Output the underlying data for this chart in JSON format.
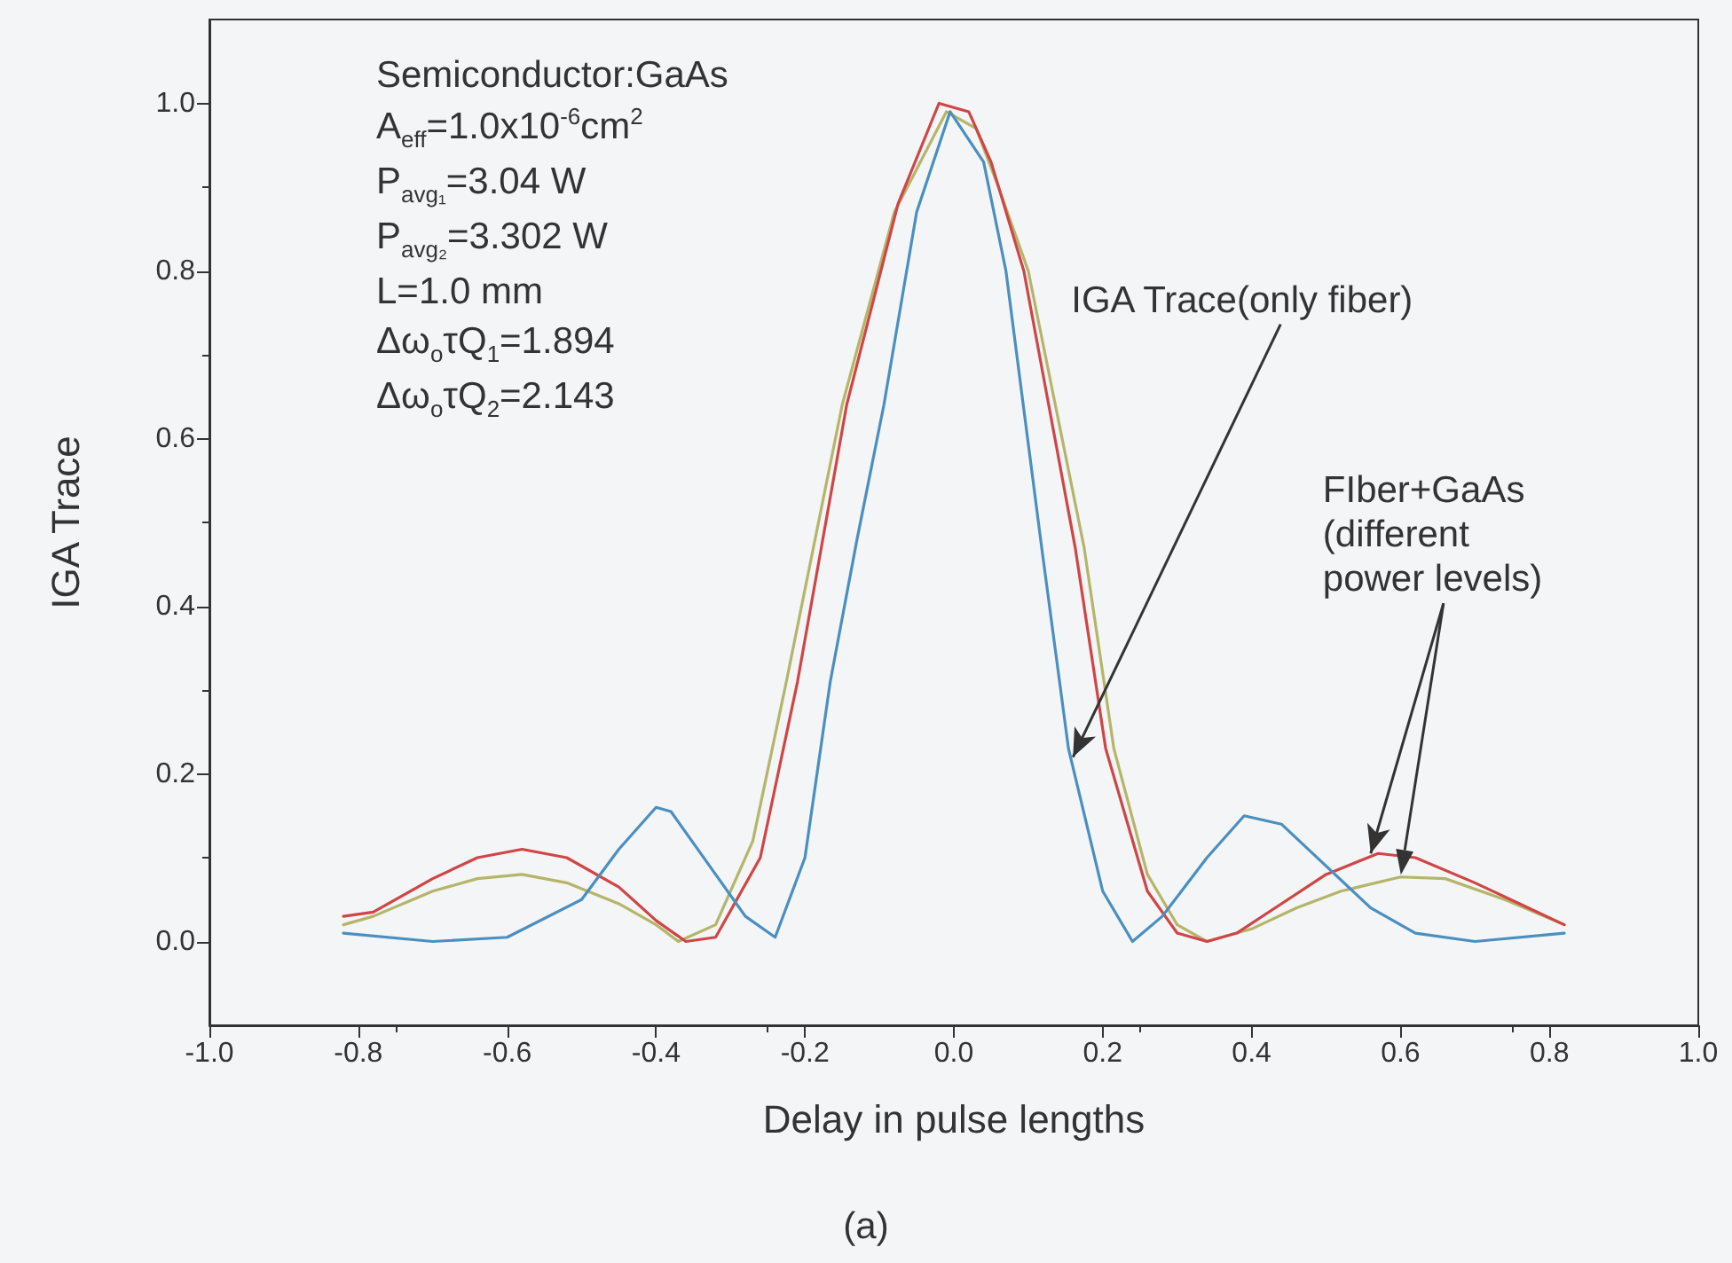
{
  "chart_data": {
    "type": "line",
    "title": "(a)",
    "xlabel": "Delay in pulse lengths",
    "ylabel": "IGA Trace",
    "xlim": [
      -1,
      1
    ],
    "ylim": [
      -0.1,
      1.1
    ],
    "xticks": [
      {
        "value": -1,
        "label": "-1.0"
      },
      {
        "value": -0.8,
        "label": "-0.8"
      },
      {
        "value": -0.6,
        "label": "-0.6"
      },
      {
        "value": -0.4,
        "label": "-0.4"
      },
      {
        "value": -0.2,
        "label": "-0.2"
      },
      {
        "value": 0,
        "label": "0.0"
      },
      {
        "value": 0.2,
        "label": "0.2"
      },
      {
        "value": 0.4,
        "label": "0.4"
      },
      {
        "value": 0.6,
        "label": "0.6"
      },
      {
        "value": 0.8,
        "label": "0.8"
      },
      {
        "value": 1,
        "label": "1.0"
      }
    ],
    "yticks": [
      {
        "value": 0,
        "label": "0.0"
      },
      {
        "value": 0.2,
        "label": "0.2"
      },
      {
        "value": 0.4,
        "label": "0.4"
      },
      {
        "value": 0.6,
        "label": "0.6"
      },
      {
        "value": 0.8,
        "label": "0.8"
      },
      {
        "value": 1,
        "label": "1.0"
      }
    ],
    "annotations": [
      "Semiconductor:GaAs",
      "A$_{eff}$=1.0x10$^{-6}$cm$^{2}$",
      "P$_{avg₁}$=3.04 W",
      "P$_{avg₂}$=3.302 W",
      "L=1.0 mm",
      "Δω$_{o}$τQ$_{1}$=1.894",
      "Δω$_{o}$τQ$_{2}$=2.143",
      {
        "text": "IGA Trace(only fiber)",
        "x": 0.16,
        "y": 0.22
      },
      {
        "text": "FIber+GaAs\n(different\npower levels)",
        "x": 0.56,
        "y": 0.105
      }
    ],
    "series": [
      {
        "color": "#b5b56a",
        "x": [
          -0.82,
          -0.78,
          -0.7,
          -0.64,
          -0.58,
          -0.52,
          -0.45,
          -0.4,
          -0.37,
          -0.32,
          -0.27,
          -0.225,
          -0.15,
          -0.08,
          -0.01,
          0.03,
          0.06,
          0.1,
          0.175,
          0.215,
          0.26,
          0.3,
          0.34,
          0.4,
          0.46,
          0.52,
          0.6,
          0.66,
          0.74,
          0.82
        ],
        "values": [
          0.02,
          0.03,
          0.06,
          0.075,
          0.08,
          0.07,
          0.045,
          0.02,
          0.0,
          0.02,
          0.12,
          0.31,
          0.64,
          0.87,
          0.99,
          0.97,
          0.9,
          0.8,
          0.47,
          0.23,
          0.08,
          0.02,
          0.0,
          0.015,
          0.04,
          0.06,
          0.077,
          0.075,
          0.05,
          0.02
        ]
      },
      {
        "color": "#d04545",
        "x": [
          -0.82,
          -0.78,
          -0.7,
          -0.64,
          -0.58,
          -0.52,
          -0.45,
          -0.4,
          -0.36,
          -0.32,
          -0.26,
          -0.21,
          -0.144,
          -0.075,
          -0.02,
          0.02,
          0.05,
          0.094,
          0.163,
          0.204,
          0.26,
          0.3,
          0.34,
          0.38,
          0.44,
          0.5,
          0.57,
          0.62,
          0.7,
          0.76,
          0.82
        ],
        "values": [
          0.03,
          0.035,
          0.075,
          0.1,
          0.11,
          0.1,
          0.065,
          0.025,
          0.0,
          0.005,
          0.1,
          0.31,
          0.64,
          0.88,
          1.0,
          0.99,
          0.93,
          0.8,
          0.47,
          0.23,
          0.06,
          0.01,
          0.0,
          0.01,
          0.045,
          0.08,
          0.105,
          0.1,
          0.07,
          0.045,
          0.02
        ]
      },
      {
        "color": "#4a8fc0",
        "x": [
          -0.82,
          -0.7,
          -0.6,
          -0.5,
          -0.45,
          -0.4,
          -0.38,
          -0.32,
          -0.28,
          -0.24,
          -0.2,
          -0.166,
          -0.13,
          -0.094,
          -0.05,
          -0.005,
          0.04,
          0.07,
          0.118,
          0.154,
          0.2,
          0.24,
          0.28,
          0.34,
          0.39,
          0.44,
          0.5,
          0.56,
          0.62,
          0.7,
          0.82
        ],
        "values": [
          0.01,
          0.0,
          0.005,
          0.05,
          0.11,
          0.16,
          0.155,
          0.08,
          0.03,
          0.005,
          0.1,
          0.31,
          0.48,
          0.64,
          0.87,
          0.99,
          0.93,
          0.8,
          0.47,
          0.23,
          0.06,
          0.0,
          0.03,
          0.1,
          0.15,
          0.14,
          0.09,
          0.04,
          0.01,
          0.0,
          0.01
        ]
      }
    ]
  }
}
